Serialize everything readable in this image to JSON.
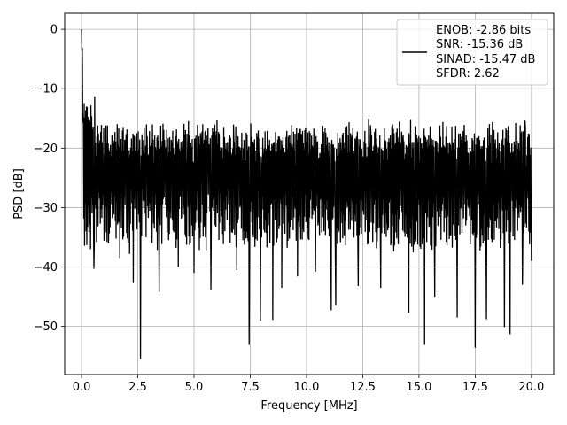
{
  "chart_data": {
    "type": "line",
    "title": "",
    "xlabel": "Frequency [MHz]",
    "ylabel": "PSD [dB]",
    "xlim": [
      -0.75,
      20.99
    ],
    "ylim": [
      -58.1,
      2.7
    ],
    "x_ticks": [
      0.0,
      2.5,
      5.0,
      7.5,
      10.0,
      12.5,
      15.0,
      17.5,
      20.0
    ],
    "x_tick_labels": [
      "0.0",
      "2.5",
      "5.0",
      "7.5",
      "10.0",
      "12.5",
      "15.0",
      "17.5",
      "20.0"
    ],
    "y_ticks": [
      0,
      -10,
      -20,
      -30,
      -40,
      -50
    ],
    "y_tick_labels": [
      "0",
      "−10",
      "−20",
      "−30",
      "−40",
      "−50"
    ],
    "grid": true,
    "legend_position": "top-right",
    "legend": {
      "lines": [
        "ENOB: -2.86 bits",
        "SNR: -15.36 dB",
        "SINAD: -15.47 dB",
        "SFDR: 2.62"
      ]
    },
    "series": [
      {
        "color": "#000000",
        "x_range": [
          0.0,
          20.0
        ],
        "points": 1200,
        "peak": {
          "x": 0.0,
          "y": 0.0
        },
        "noise_floor_mean": -24,
        "upper_envelope_near_dc": -10,
        "upper_envelope": -15,
        "typical_low": -35,
        "deep_nulls": [
          {
            "x": 0.2,
            "y": -34
          },
          {
            "x": 0.4,
            "y": -37
          },
          {
            "x": 0.55,
            "y": -40.3
          },
          {
            "x": 1.2,
            "y": -36
          },
          {
            "x": 1.7,
            "y": -38.5
          },
          {
            "x": 2.3,
            "y": -42.7
          },
          {
            "x": 2.62,
            "y": -55.5
          },
          {
            "x": 3.45,
            "y": -44.2
          },
          {
            "x": 4.3,
            "y": -40
          },
          {
            "x": 5.0,
            "y": -41
          },
          {
            "x": 5.75,
            "y": -43.9
          },
          {
            "x": 6.9,
            "y": -40.5
          },
          {
            "x": 7.45,
            "y": -53.1
          },
          {
            "x": 7.95,
            "y": -49.1
          },
          {
            "x": 8.5,
            "y": -48.9
          },
          {
            "x": 8.9,
            "y": -43.5
          },
          {
            "x": 9.6,
            "y": -41.6
          },
          {
            "x": 10.4,
            "y": -40.8
          },
          {
            "x": 11.1,
            "y": -47.3
          },
          {
            "x": 11.3,
            "y": -46.5
          },
          {
            "x": 12.3,
            "y": -43.2
          },
          {
            "x": 13.3,
            "y": -43.5
          },
          {
            "x": 14.55,
            "y": -47.7
          },
          {
            "x": 15.25,
            "y": -53.1
          },
          {
            "x": 15.7,
            "y": -45.0
          },
          {
            "x": 16.7,
            "y": -48.5
          },
          {
            "x": 17.5,
            "y": -53.6
          },
          {
            "x": 18.0,
            "y": -48.8
          },
          {
            "x": 18.8,
            "y": -50.1
          },
          {
            "x": 19.05,
            "y": -51.3
          },
          {
            "x": 19.6,
            "y": -43.0
          },
          {
            "x": 20.0,
            "y": -39.0
          }
        ]
      }
    ]
  }
}
